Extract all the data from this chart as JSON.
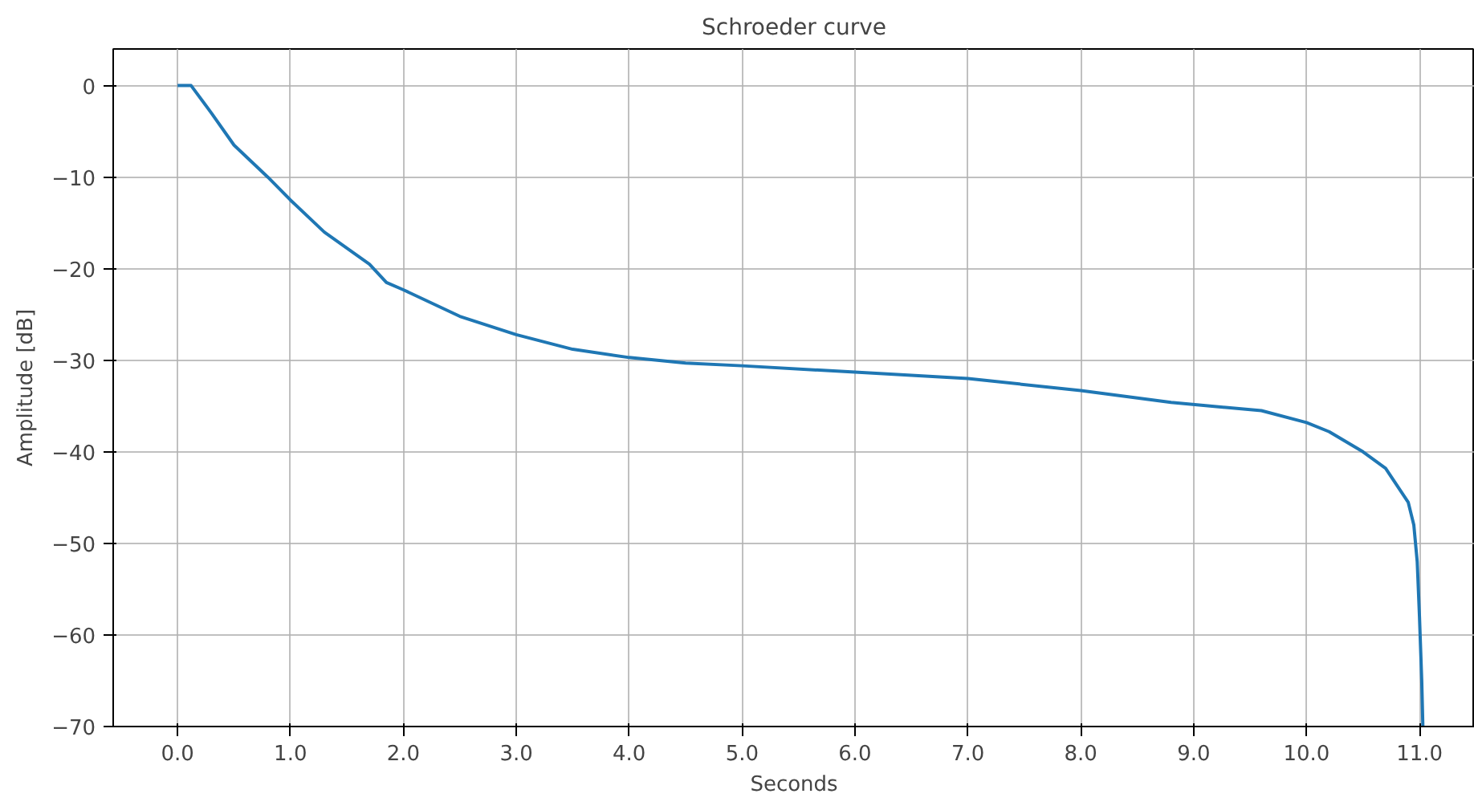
{
  "chart_data": {
    "type": "line",
    "title": "Schroeder curve",
    "xlabel": "Seconds",
    "ylabel": "Amplitude [dB]",
    "xlim": [
      -0.57,
      11.49
    ],
    "ylim": [
      -70,
      4
    ],
    "xticks": [
      {
        "value": 0,
        "label": "0.0"
      },
      {
        "value": 1,
        "label": "1.0"
      },
      {
        "value": 2,
        "label": "2.0"
      },
      {
        "value": 3,
        "label": "3.0"
      },
      {
        "value": 4,
        "label": "4.0"
      },
      {
        "value": 5,
        "label": "5.0"
      },
      {
        "value": 6,
        "label": "6.0"
      },
      {
        "value": 7,
        "label": "7.0"
      },
      {
        "value": 8,
        "label": "8.0"
      },
      {
        "value": 9,
        "label": "9.0"
      },
      {
        "value": 10,
        "label": "10.0"
      },
      {
        "value": 11,
        "label": "11.0"
      }
    ],
    "yticks": [
      -70,
      -60,
      -50,
      -40,
      -30,
      -20,
      -10,
      0
    ],
    "grid": true,
    "series": [
      {
        "color": "#1f77b4",
        "x": [
          0,
          0.12,
          0.3,
          0.5,
          0.8,
          1.0,
          1.3,
          1.7,
          1.85,
          2.0,
          2.5,
          3.0,
          3.5,
          4.0,
          4.5,
          5.0,
          6.0,
          7.0,
          8.0,
          8.8,
          9.6,
          10.0,
          10.2,
          10.5,
          10.7,
          10.9,
          10.95,
          10.98,
          11.0,
          11.02,
          11.03
        ],
        "values": [
          0,
          0,
          -3,
          -6.5,
          -10,
          -12.5,
          -16,
          -19.5,
          -21.5,
          -22.3,
          -25.2,
          -27.2,
          -28.8,
          -29.7,
          -30.3,
          -30.6,
          -31.3,
          -32.0,
          -33.3,
          -34.6,
          -35.5,
          -36.8,
          -37.8,
          -40,
          -41.8,
          -45.5,
          -48,
          -52,
          -58,
          -65,
          -70
        ]
      }
    ]
  }
}
